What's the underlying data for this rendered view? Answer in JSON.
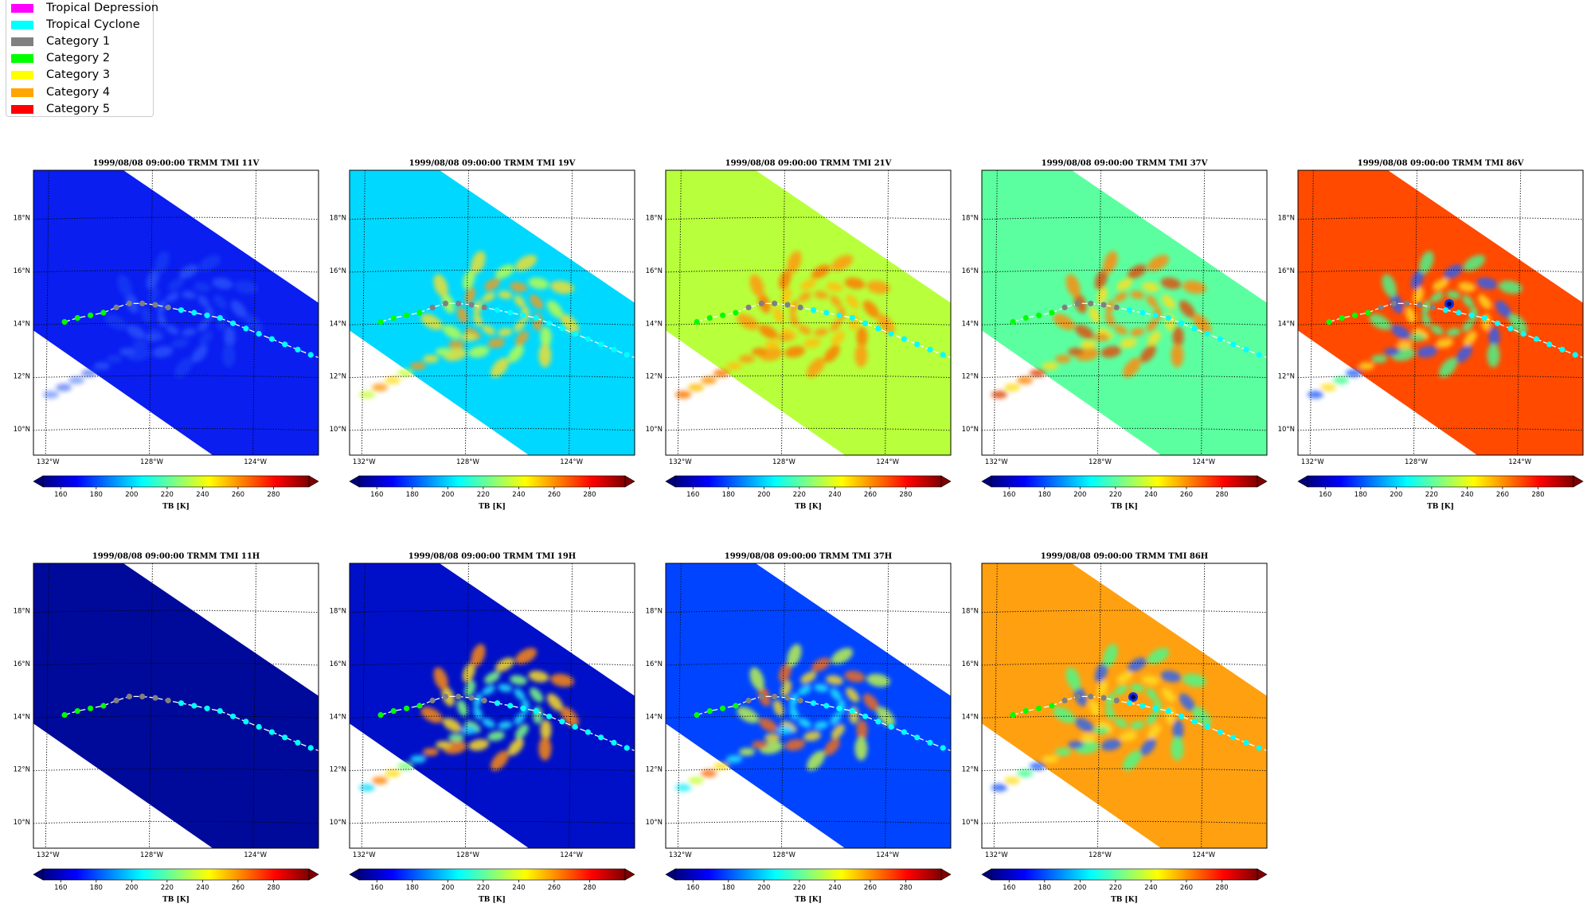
{
  "legend": {
    "items": [
      {
        "label": "Tropical Depression",
        "color": "#ff00ff"
      },
      {
        "label": "Tropical Cyclone",
        "color": "#00ffff"
      },
      {
        "label": "Category 1",
        "color": "#808080"
      },
      {
        "label": "Category 2",
        "color": "#00ff00"
      },
      {
        "label": "Category 3",
        "color": "#ffff00"
      },
      {
        "label": "Category 4",
        "color": "#ffa500"
      },
      {
        "label": "Category 5",
        "color": "#ff0000"
      }
    ]
  },
  "colorbar": {
    "ticks": [
      "160",
      "180",
      "200",
      "220",
      "240",
      "260",
      "280"
    ],
    "label": "TB [K]",
    "range": [
      150,
      300
    ],
    "colormap": "jet"
  },
  "chart_data": [
    {
      "type": "heatmap",
      "title": "1999/08/08 09:00:00  TRMM TMI 11V",
      "base_color": "#0a1ef0",
      "features": "weak-warm",
      "x_ticks": [
        "132°W",
        "128°W",
        "124°W"
      ],
      "y_ticks": [
        "18°N",
        "16°N",
        "14°N",
        "12°N",
        "10°N"
      ]
    },
    {
      "type": "heatmap",
      "title": "1999/08/08 09:00:00  TRMM TMI 19V",
      "base_color": "#00d8ff",
      "features": "bands-yellow",
      "x_ticks": [
        "132°W",
        "128°W",
        "124°W"
      ],
      "y_ticks": [
        "18°N",
        "16°N",
        "14°N",
        "12°N",
        "10°N"
      ]
    },
    {
      "type": "heatmap",
      "title": "1999/08/08 09:00:00  TRMM TMI 21V",
      "base_color": "#b8ff3c",
      "features": "orange-core",
      "x_ticks": [
        "132°W",
        "128°W",
        "124°W"
      ],
      "y_ticks": [
        "18°N",
        "16°N",
        "14°N",
        "12°N",
        "10°N"
      ]
    },
    {
      "type": "heatmap",
      "title": "1999/08/08 09:00:00  TRMM TMI 37V",
      "base_color": "#5cffa0",
      "features": "bands-orange",
      "x_ticks": [
        "132°W",
        "128°W",
        "124°W"
      ],
      "y_ticks": [
        "18°N",
        "16°N",
        "14°N",
        "12°N",
        "10°N"
      ]
    },
    {
      "type": "heatmap",
      "title": "1999/08/08 09:00:00  TRMM TMI 86V",
      "base_color": "#ff4a00",
      "features": "cold-spots",
      "x_ticks": [
        "132°W",
        "128°W",
        "124°W"
      ],
      "y_ticks": [
        "18°N",
        "16°N",
        "14°N",
        "12°N",
        "10°N"
      ]
    },
    {
      "type": "heatmap",
      "title": "1999/08/08 09:00:00  TRMM TMI 11H",
      "base_color": "#000a9a",
      "features": "none",
      "x_ticks": [
        "132°W",
        "128°W",
        "124°W"
      ],
      "y_ticks": [
        "18°N",
        "16°N",
        "14°N",
        "12°N",
        "10°N"
      ]
    },
    {
      "type": "heatmap",
      "title": "1999/08/08 09:00:00  TRMM TMI 19H",
      "base_color": "#0010c8",
      "features": "bands-cyan",
      "x_ticks": [
        "132°W",
        "128°W",
        "124°W"
      ],
      "y_ticks": [
        "18°N",
        "16°N",
        "14°N",
        "12°N",
        "10°N"
      ]
    },
    {
      "type": "heatmap",
      "title": "1999/08/08 09:00:00  TRMM TMI 37H",
      "base_color": "#0044ff",
      "features": "bands-mixed",
      "x_ticks": [
        "132°W",
        "128°W",
        "124°W"
      ],
      "y_ticks": [
        "18°N",
        "16°N",
        "14°N",
        "12°N",
        "10°N"
      ]
    },
    {
      "type": "heatmap",
      "title": "1999/08/08 09:00:00  TRMM TMI 86H",
      "base_color": "#ffa010",
      "features": "cold-spots",
      "x_ticks": [
        "132°W",
        "128°W",
        "124°W"
      ],
      "y_ticks": [
        "18°N",
        "16°N",
        "14°N",
        "12°N",
        "10°N"
      ]
    }
  ],
  "track": {
    "points": [
      {
        "lon": 131.3,
        "lat": 14.05,
        "cat": "Category 2"
      },
      {
        "lon": 130.8,
        "lat": 14.2,
        "cat": "Category 2"
      },
      {
        "lon": 130.3,
        "lat": 14.3,
        "cat": "Category 2"
      },
      {
        "lon": 129.8,
        "lat": 14.4,
        "cat": "Category 2"
      },
      {
        "lon": 129.3,
        "lat": 14.6,
        "cat": "Category 1"
      },
      {
        "lon": 128.8,
        "lat": 14.75,
        "cat": "Category 1"
      },
      {
        "lon": 128.3,
        "lat": 14.75,
        "cat": "Category 1"
      },
      {
        "lon": 127.8,
        "lat": 14.7,
        "cat": "Category 1"
      },
      {
        "lon": 127.3,
        "lat": 14.6,
        "cat": "Category 1"
      },
      {
        "lon": 126.8,
        "lat": 14.5,
        "cat": "Tropical Cyclone"
      },
      {
        "lon": 126.3,
        "lat": 14.4,
        "cat": "Tropical Cyclone"
      },
      {
        "lon": 125.8,
        "lat": 14.3,
        "cat": "Tropical Cyclone"
      },
      {
        "lon": 125.3,
        "lat": 14.2,
        "cat": "Tropical Cyclone"
      },
      {
        "lon": 124.8,
        "lat": 14.0,
        "cat": "Tropical Cyclone"
      },
      {
        "lon": 124.3,
        "lat": 13.8,
        "cat": "Tropical Cyclone"
      },
      {
        "lon": 123.8,
        "lat": 13.6,
        "cat": "Tropical Cyclone"
      },
      {
        "lon": 123.3,
        "lat": 13.4,
        "cat": "Tropical Cyclone"
      },
      {
        "lon": 122.8,
        "lat": 13.2,
        "cat": "Tropical Cyclone"
      },
      {
        "lon": 122.3,
        "lat": 13.0,
        "cat": "Tropical Cyclone"
      },
      {
        "lon": 121.8,
        "lat": 12.8,
        "cat": "Tropical Cyclone"
      }
    ]
  }
}
